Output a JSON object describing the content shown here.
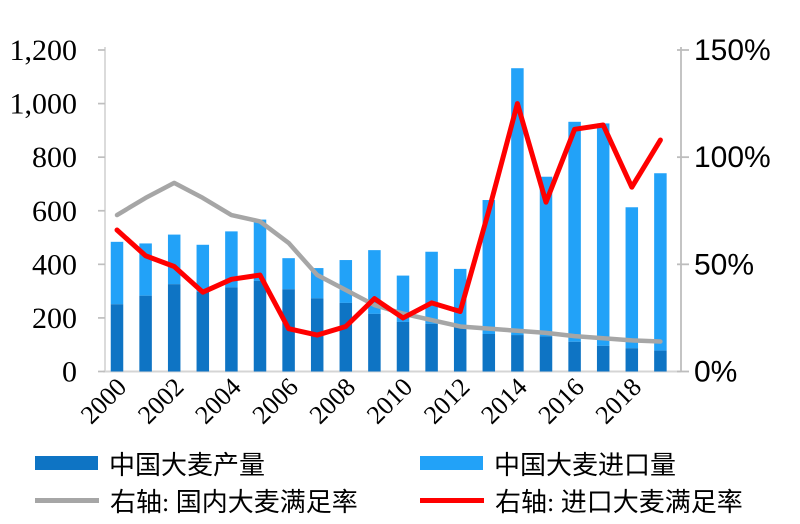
{
  "chart_data": {
    "type": "combo",
    "title": "",
    "categories": [
      "2000",
      "2001",
      "2002",
      "2003",
      "2004",
      "2005",
      "2006",
      "2007",
      "2008",
      "2009",
      "2010",
      "2011",
      "2012",
      "2013",
      "2014",
      "2015",
      "2016",
      "2017",
      "2018",
      "2019"
    ],
    "series": [
      {
        "name": "中国大麦产量",
        "type": "bar",
        "stacked": true,
        "axis": "left",
        "color": "#0E74C4",
        "values": [
          251,
          283,
          326,
          298,
          314,
          338,
          307,
          273,
          256,
          215,
          185,
          178,
          170,
          140,
          136,
          131,
          111,
          96,
          87,
          78
        ]
      },
      {
        "name": "中国大麦进口量",
        "type": "bar",
        "stacked": true,
        "axis": "left",
        "color": "#22A2F8",
        "values": [
          233,
          195,
          185,
          175,
          209,
          229,
          116,
          113,
          160,
          238,
          173,
          269,
          213,
          500,
          996,
          596,
          821,
          830,
          526,
          662
        ]
      },
      {
        "name": "右轴: 国内大麦满足率",
        "type": "line",
        "axis": "right",
        "color": "#A6A6A6",
        "values": [
          73,
          81,
          88,
          81,
          73,
          70,
          60,
          45,
          38,
          31,
          27,
          24,
          21,
          20,
          19,
          18,
          16.5,
          15.5,
          14.5,
          14
        ]
      },
      {
        "name": "右轴: 进口大麦满足率",
        "type": "line",
        "axis": "right",
        "color": "#FF0000",
        "values": [
          66,
          54,
          49,
          37,
          43,
          45,
          20,
          17,
          21,
          34,
          25,
          32,
          28,
          75,
          125,
          79,
          113,
          115,
          86,
          108
        ]
      }
    ],
    "left_axis": {
      "max": 1200,
      "tick_values": [
        0,
        200,
        400,
        600,
        800,
        1000,
        1200
      ],
      "tick_labels": [
        "0",
        "200",
        "400",
        "600",
        "800",
        "1,000",
        "1,200"
      ]
    },
    "right_axis": {
      "max": 150,
      "tick_values": [
        0,
        50,
        100,
        150
      ],
      "tick_labels": [
        "0%",
        "50%",
        "100%",
        "150%"
      ]
    },
    "x_tick_labels": [
      "2000",
      "2002",
      "2004",
      "2006",
      "2008",
      "2010",
      "2012",
      "2014",
      "2016",
      "2018"
    ],
    "grid": false,
    "legend_position": "bottom",
    "legend": [
      {
        "label": "中国大麦产量",
        "swatch": "bar",
        "color": "#0E74C4"
      },
      {
        "label": "中国大麦进口量",
        "swatch": "bar",
        "color": "#22A2F8"
      },
      {
        "label": "右轴: 国内大麦满足率",
        "swatch": "line",
        "color": "#A6A6A6"
      },
      {
        "label": "右轴: 进口大麦满足率",
        "swatch": "line",
        "color": "#FF0000"
      }
    ],
    "axis_colors": {
      "axis_line": "#D5D5D5",
      "tick_mark": "#BFBFBF",
      "label_text": "#000000"
    }
  }
}
